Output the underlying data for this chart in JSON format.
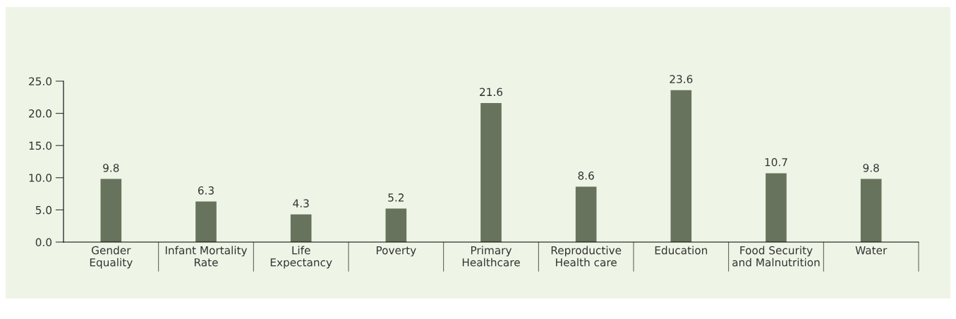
{
  "chart_data": {
    "type": "bar",
    "categories": [
      "Gender\nEquality",
      "Infant Mortality\nRate",
      "Life\nExpectancy",
      "Poverty",
      "Primary\nHealthcare",
      "Reproductive\nHealth care",
      "Education",
      "Food Security\nand Malnutrition",
      "Water"
    ],
    "values": [
      9.8,
      6.3,
      4.3,
      5.2,
      21.6,
      8.6,
      23.6,
      10.7,
      9.8
    ],
    "color": "#67735c",
    "ylim": [
      0,
      25
    ],
    "yticks": [
      {
        "value": 0,
        "label": "0.0"
      },
      {
        "value": 5,
        "label": "5.0"
      },
      {
        "value": 10,
        "label": "10.0"
      },
      {
        "value": 15,
        "label": "15.0"
      },
      {
        "value": 20,
        "label": "20.0"
      },
      {
        "value": 25,
        "label": "25.0"
      }
    ],
    "data_labels": true,
    "grid": false,
    "legend": false
  }
}
